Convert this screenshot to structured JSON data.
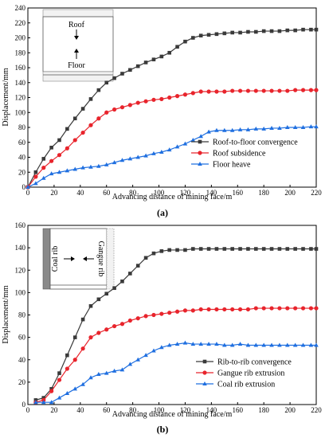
{
  "chart_data": [
    {
      "type": "line",
      "panel_label": "(a)",
      "xlabel": "Advancing distance of mining face/m",
      "ylabel": "Displacement/mm",
      "xlim": [
        0,
        220
      ],
      "ylim": [
        0,
        240
      ],
      "xticks": [
        0,
        20,
        40,
        60,
        80,
        100,
        120,
        140,
        160,
        180,
        200,
        220
      ],
      "yticks": [
        0,
        20,
        40,
        60,
        80,
        100,
        120,
        140,
        160,
        180,
        200,
        220,
        240
      ],
      "grid": false,
      "legend_position": "bottom-right",
      "inset": {
        "top_label": "Roof",
        "bottom_label": "Floor"
      },
      "series": [
        {
          "name": "Roof-to-floor convergence",
          "color": "#3a3a3a",
          "marker": "square",
          "x": [
            0,
            6,
            12,
            18,
            24,
            30,
            36,
            42,
            48,
            54,
            60,
            66,
            72,
            78,
            84,
            90,
            96,
            102,
            108,
            114,
            120,
            126,
            132,
            138,
            144,
            150,
            156,
            162,
            168,
            174,
            180,
            186,
            192,
            198,
            204,
            210,
            216,
            220
          ],
          "y": [
            0,
            20,
            38,
            53,
            63,
            78,
            92,
            105,
            118,
            130,
            140,
            146,
            152,
            157,
            162,
            167,
            171,
            175,
            180,
            188,
            195,
            200,
            203,
            204,
            205,
            206,
            207,
            207,
            208,
            208,
            209,
            209,
            209,
            210,
            210,
            211,
            211,
            211
          ]
        },
        {
          "name": "Roof  subsidence",
          "color": "#e8242c",
          "marker": "circle",
          "x": [
            0,
            6,
            12,
            18,
            24,
            30,
            36,
            42,
            48,
            54,
            60,
            66,
            72,
            78,
            84,
            90,
            96,
            102,
            108,
            114,
            120,
            126,
            132,
            138,
            144,
            150,
            156,
            162,
            168,
            174,
            180,
            186,
            192,
            198,
            204,
            210,
            216,
            220
          ],
          "y": [
            0,
            14,
            26,
            35,
            43,
            52,
            63,
            73,
            83,
            92,
            100,
            104,
            107,
            110,
            113,
            115,
            117,
            118,
            120,
            122,
            124,
            126,
            128,
            128,
            128,
            128,
            129,
            129,
            129,
            129,
            129,
            129,
            129,
            129,
            130,
            130,
            130,
            130
          ]
        },
        {
          "name": "Floor heave",
          "color": "#1f6fe0",
          "marker": "triangle",
          "x": [
            0,
            6,
            12,
            18,
            24,
            30,
            36,
            42,
            48,
            54,
            60,
            66,
            72,
            78,
            84,
            90,
            96,
            102,
            108,
            114,
            120,
            126,
            132,
            138,
            144,
            150,
            156,
            162,
            168,
            174,
            180,
            186,
            192,
            198,
            204,
            210,
            216,
            220
          ],
          "y": [
            0,
            5,
            12,
            18,
            20,
            22,
            24,
            26,
            27,
            28,
            30,
            33,
            36,
            38,
            40,
            42,
            45,
            47,
            50,
            54,
            58,
            63,
            68,
            74,
            76,
            76,
            76,
            77,
            77,
            78,
            78,
            79,
            79,
            80,
            80,
            80,
            81,
            81
          ]
        }
      ]
    },
    {
      "type": "line",
      "panel_label": "(b)",
      "xlabel": "Advancing distance of mining face/m",
      "ylabel": "Displacement/mm",
      "xlim": [
        0,
        220
      ],
      "ylim": [
        0,
        160
      ],
      "xticks": [
        0,
        20,
        40,
        60,
        80,
        100,
        120,
        140,
        160,
        180,
        200,
        220
      ],
      "yticks": [
        0,
        20,
        40,
        60,
        80,
        100,
        120,
        140,
        160
      ],
      "grid": false,
      "legend_position": "bottom-right",
      "inset": {
        "left_label": "Coal rib",
        "right_label": "Gangue rib"
      },
      "series": [
        {
          "name": "Rib-to-rib convergence",
          "color": "#3a3a3a",
          "marker": "square",
          "x": [
            6,
            12,
            18,
            24,
            30,
            36,
            42,
            48,
            54,
            60,
            66,
            72,
            78,
            84,
            90,
            96,
            102,
            108,
            114,
            120,
            126,
            132,
            138,
            144,
            150,
            156,
            162,
            168,
            174,
            180,
            186,
            192,
            198,
            204,
            210,
            216,
            220
          ],
          "y": [
            4,
            6,
            14,
            28,
            44,
            60,
            76,
            88,
            94,
            99,
            104,
            110,
            117,
            124,
            131,
            135,
            137,
            138,
            138,
            138,
            139,
            139,
            139,
            139,
            139,
            139,
            139,
            139,
            139,
            139,
            139,
            139,
            139,
            139,
            139,
            139,
            139
          ]
        },
        {
          "name": "Gangue  rib extrusion",
          "color": "#e8242c",
          "marker": "circle",
          "x": [
            6,
            12,
            18,
            24,
            30,
            36,
            42,
            48,
            54,
            60,
            66,
            72,
            78,
            84,
            90,
            96,
            102,
            108,
            114,
            120,
            126,
            132,
            138,
            144,
            150,
            156,
            162,
            168,
            174,
            180,
            186,
            192,
            198,
            204,
            210,
            216,
            220
          ],
          "y": [
            2,
            4,
            12,
            22,
            32,
            40,
            50,
            60,
            64,
            67,
            70,
            72,
            75,
            77,
            79,
            80,
            81,
            82,
            83,
            84,
            84,
            85,
            85,
            85,
            85,
            85,
            85,
            85,
            86,
            86,
            86,
            86,
            86,
            86,
            86,
            86,
            86
          ]
        },
        {
          "name": "Coal rib extrusion",
          "color": "#1f6fe0",
          "marker": "triangle",
          "x": [
            6,
            12,
            18,
            24,
            30,
            36,
            42,
            48,
            54,
            60,
            66,
            72,
            78,
            84,
            90,
            96,
            102,
            108,
            114,
            120,
            126,
            132,
            138,
            144,
            150,
            156,
            162,
            168,
            174,
            180,
            186,
            192,
            198,
            204,
            210,
            216,
            220
          ],
          "y": [
            2,
            2,
            2,
            6,
            10,
            14,
            18,
            24,
            27,
            28,
            30,
            31,
            36,
            40,
            44,
            48,
            51,
            53,
            54,
            55,
            54,
            54,
            54,
            54,
            53,
            53,
            54,
            53,
            53,
            53,
            53,
            53,
            53,
            53,
            53,
            53,
            53
          ]
        }
      ]
    }
  ]
}
